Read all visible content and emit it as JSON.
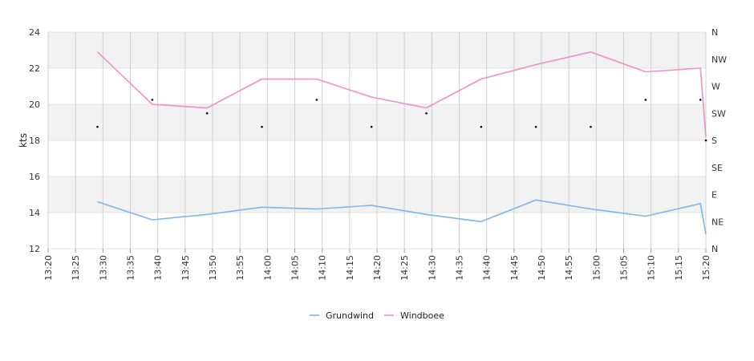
{
  "chart_data": {
    "type": "line",
    "ylabel": "kts",
    "ylim": [
      12,
      24
    ],
    "yticks": [
      "12",
      "14",
      "16",
      "18",
      "20",
      "22",
      "24"
    ],
    "xlim": [
      "13:20",
      "15:20"
    ],
    "xticks": [
      "13:20",
      "13:25",
      "13:30",
      "13:35",
      "13:40",
      "13:45",
      "13:50",
      "13:55",
      "14:00",
      "14:05",
      "14:10",
      "14:15",
      "14:20",
      "14:25",
      "14:30",
      "14:35",
      "14:40",
      "14:45",
      "14:50",
      "14:55",
      "15:00",
      "15:05",
      "15:10",
      "15:15",
      "15:20"
    ],
    "y2ticks": [
      "N",
      "NE",
      "E",
      "SE",
      "S",
      "SW",
      "W",
      "NW",
      "N"
    ],
    "grid": true,
    "legend": "bottom",
    "series": [
      {
        "name": "Grundwind",
        "color": "#7cb5ec",
        "x": [
          "13:29",
          "13:39",
          "13:49",
          "13:59",
          "14:09",
          "14:19",
          "14:29",
          "14:39",
          "14:49",
          "14:59",
          "15:09",
          "15:19",
          "15:20"
        ],
        "values": [
          14.6,
          13.6,
          13.9,
          14.3,
          14.2,
          14.4,
          13.9,
          13.5,
          14.7,
          14.2,
          13.8,
          14.5,
          12.8
        ]
      },
      {
        "name": "Windboee",
        "color": "#f28fbd",
        "x": [
          "13:29",
          "13:39",
          "13:49",
          "13:59",
          "14:09",
          "14:19",
          "14:29",
          "14:39",
          "14:49",
          "14:59",
          "15:09",
          "15:19",
          "15:20"
        ],
        "values": [
          22.9,
          20.0,
          19.8,
          21.4,
          21.4,
          20.4,
          19.8,
          21.4,
          22.2,
          22.9,
          21.8,
          22.0,
          18.2
        ]
      }
    ],
    "direction_points": {
      "x": [
        "13:29",
        "13:39",
        "13:49",
        "13:59",
        "14:09",
        "14:19",
        "14:29",
        "14:39",
        "14:49",
        "14:59",
        "15:09",
        "15:19",
        "15:20"
      ],
      "values": [
        "SSW",
        "WSW",
        "SW",
        "SSW",
        "WSW",
        "SSW",
        "SW",
        "SSW",
        "SSW",
        "SSW",
        "WSW",
        "WSW",
        "S"
      ]
    }
  }
}
